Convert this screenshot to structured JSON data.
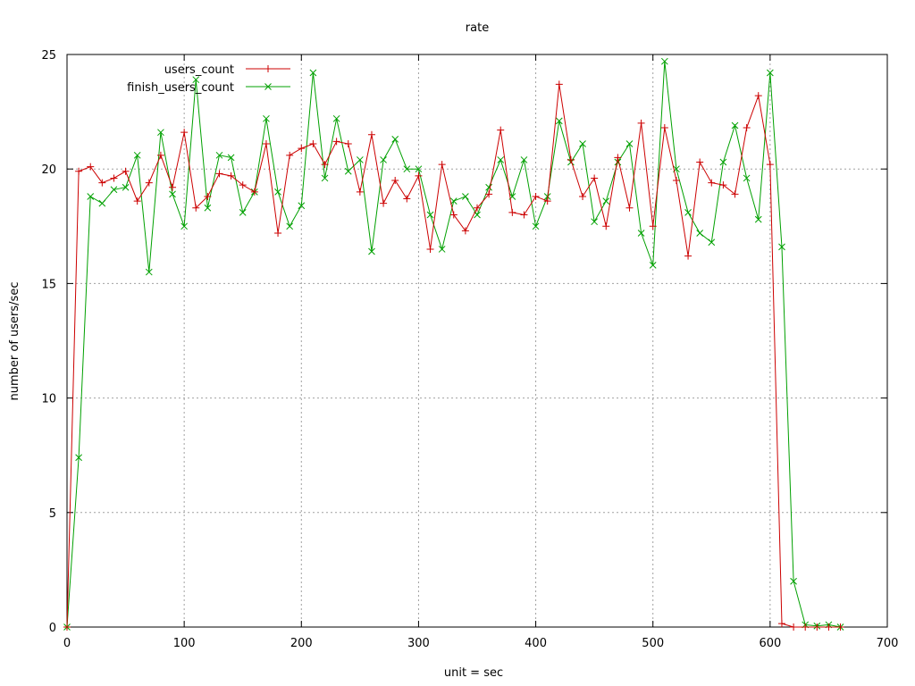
{
  "chart_data": {
    "type": "line",
    "title": "rate",
    "xlabel": "unit = sec",
    "ylabel": "number of users/sec",
    "xlim": [
      0,
      700
    ],
    "ylim": [
      0,
      25
    ],
    "x_ticks": [
      0,
      100,
      200,
      300,
      400,
      500,
      600,
      700
    ],
    "y_ticks": [
      0,
      5,
      10,
      15,
      20,
      25
    ],
    "grid": true,
    "legend_position": "top-left",
    "series": [
      {
        "name": "users_count",
        "color": "#cc0000",
        "marker": "plus",
        "x": [
          0,
          10,
          20,
          30,
          40,
          50,
          60,
          70,
          80,
          90,
          100,
          110,
          120,
          130,
          140,
          150,
          160,
          170,
          180,
          190,
          200,
          210,
          220,
          230,
          240,
          250,
          260,
          270,
          280,
          290,
          300,
          310,
          320,
          330,
          340,
          350,
          360,
          370,
          380,
          390,
          400,
          410,
          420,
          430,
          440,
          450,
          460,
          470,
          480,
          490,
          500,
          510,
          520,
          530,
          540,
          550,
          560,
          570,
          580,
          590,
          600,
          610,
          620,
          630,
          640,
          650,
          660
        ],
        "values": [
          0,
          19.9,
          20.1,
          19.4,
          19.6,
          19.9,
          18.6,
          19.4,
          20.6,
          19.2,
          21.6,
          18.3,
          18.8,
          19.8,
          19.7,
          19.3,
          19.0,
          21.1,
          17.2,
          20.6,
          20.9,
          21.1,
          20.2,
          21.2,
          21.1,
          19.0,
          21.5,
          18.5,
          19.5,
          18.7,
          19.7,
          16.5,
          20.2,
          18.0,
          17.3,
          18.3,
          18.9,
          21.7,
          18.1,
          18.0,
          18.8,
          18.6,
          23.7,
          20.4,
          18.8,
          19.6,
          17.5,
          20.5,
          18.3,
          22.0,
          17.5,
          21.8,
          19.5,
          16.2,
          20.3,
          19.4,
          19.3,
          18.9,
          21.8,
          23.2,
          20.2,
          0.15,
          0.0,
          0.0,
          0.0,
          0.0,
          0.0
        ]
      },
      {
        "name": "finish_users_count",
        "color": "#00a000",
        "marker": "cross",
        "x": [
          0,
          10,
          20,
          30,
          40,
          50,
          60,
          70,
          80,
          90,
          100,
          110,
          120,
          130,
          140,
          150,
          160,
          170,
          180,
          190,
          200,
          210,
          220,
          230,
          240,
          250,
          260,
          270,
          280,
          290,
          300,
          310,
          320,
          330,
          340,
          350,
          360,
          370,
          380,
          390,
          400,
          410,
          420,
          430,
          440,
          450,
          460,
          470,
          480,
          490,
          500,
          510,
          520,
          530,
          540,
          550,
          560,
          570,
          580,
          590,
          600,
          610,
          620,
          630,
          640,
          650,
          660
        ],
        "values": [
          0,
          7.4,
          18.8,
          18.5,
          19.1,
          19.2,
          20.6,
          15.5,
          21.6,
          18.9,
          17.5,
          23.9,
          18.3,
          20.6,
          20.5,
          18.1,
          19.0,
          22.2,
          19.0,
          17.5,
          18.4,
          24.2,
          19.6,
          22.2,
          19.9,
          20.4,
          16.4,
          20.4,
          21.3,
          20.0,
          20.0,
          18.0,
          16.5,
          18.6,
          18.8,
          18.0,
          19.2,
          20.4,
          18.8,
          20.4,
          17.5,
          18.8,
          22.1,
          20.3,
          21.1,
          17.7,
          18.6,
          20.3,
          21.1,
          17.2,
          15.8,
          24.7,
          20.0,
          18.1,
          17.2,
          16.8,
          20.3,
          21.9,
          19.6,
          17.8,
          24.2,
          16.6,
          2.0,
          0.1,
          0.05,
          0.1,
          0.0
        ]
      }
    ]
  }
}
